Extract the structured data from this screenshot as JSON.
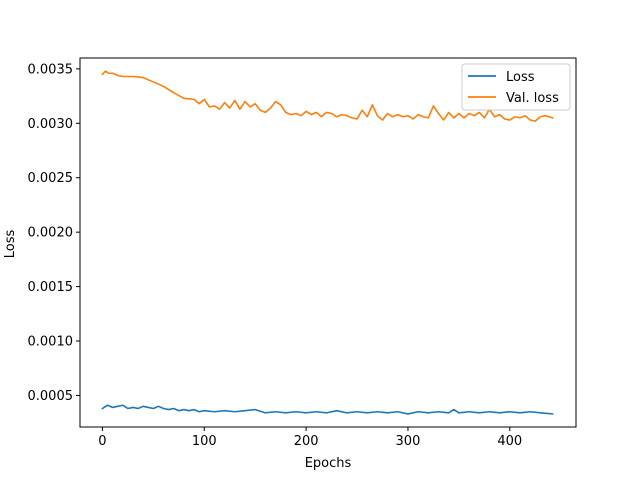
{
  "chart_data": {
    "type": "line",
    "title": "",
    "xlabel": "Epochs",
    "ylabel": "Loss",
    "xlim": [
      -22,
      465
    ],
    "ylim": [
      0.00021,
      0.0036
    ],
    "xticks": [
      0,
      100,
      200,
      300,
      400
    ],
    "xtick_labels": [
      "0",
      "100",
      "200",
      "300",
      "400"
    ],
    "yticks": [
      0.0005,
      0.001,
      0.0015,
      0.002,
      0.0025,
      0.003,
      0.0035
    ],
    "ytick_labels": [
      "0.0005",
      "0.0010",
      "0.0015",
      "0.0020",
      "0.0025",
      "0.0030",
      "0.0035"
    ],
    "grid": false,
    "legend_position": "top-right",
    "series": [
      {
        "name": "Loss",
        "color": "#1f77b4",
        "x": [
          0,
          5,
          10,
          15,
          20,
          25,
          30,
          35,
          40,
          45,
          50,
          55,
          60,
          65,
          70,
          75,
          80,
          85,
          90,
          95,
          100,
          110,
          120,
          130,
          140,
          150,
          160,
          170,
          180,
          190,
          200,
          210,
          220,
          230,
          240,
          250,
          260,
          270,
          280,
          290,
          300,
          310,
          320,
          330,
          340,
          345,
          350,
          360,
          370,
          380,
          390,
          400,
          410,
          420,
          430,
          442
        ],
        "y": [
          0.00038,
          0.00041,
          0.00039,
          0.0004,
          0.00041,
          0.00038,
          0.00039,
          0.00038,
          0.0004,
          0.00039,
          0.00038,
          0.0004,
          0.00038,
          0.00037,
          0.00038,
          0.00036,
          0.00037,
          0.00036,
          0.00037,
          0.00035,
          0.00036,
          0.00035,
          0.00036,
          0.00035,
          0.00036,
          0.00037,
          0.00034,
          0.00035,
          0.00034,
          0.00035,
          0.00034,
          0.00035,
          0.00034,
          0.00036,
          0.00034,
          0.00035,
          0.00034,
          0.00035,
          0.00034,
          0.00035,
          0.00033,
          0.00035,
          0.00034,
          0.00035,
          0.00034,
          0.00037,
          0.00034,
          0.00035,
          0.00034,
          0.00035,
          0.00034,
          0.00035,
          0.00034,
          0.00035,
          0.00034,
          0.00033
        ]
      },
      {
        "name": "Val. loss",
        "color": "#ff7f0e",
        "x": [
          0,
          3,
          6,
          10,
          15,
          20,
          30,
          40,
          50,
          60,
          70,
          80,
          90,
          95,
          100,
          105,
          110,
          115,
          120,
          125,
          130,
          135,
          140,
          145,
          150,
          155,
          160,
          165,
          170,
          175,
          180,
          185,
          190,
          195,
          200,
          205,
          210,
          215,
          220,
          225,
          230,
          235,
          240,
          245,
          250,
          255,
          260,
          265,
          270,
          275,
          280,
          285,
          290,
          295,
          300,
          305,
          310,
          315,
          320,
          325,
          330,
          335,
          340,
          345,
          350,
          355,
          360,
          365,
          370,
          375,
          380,
          385,
          390,
          395,
          400,
          405,
          410,
          415,
          420,
          425,
          430,
          435,
          442
        ],
        "y": [
          0.00345,
          0.00348,
          0.00346,
          0.00346,
          0.00344,
          0.00343,
          0.00343,
          0.00342,
          0.00338,
          0.00334,
          0.00328,
          0.00323,
          0.00322,
          0.00318,
          0.00322,
          0.00315,
          0.00316,
          0.00313,
          0.00319,
          0.00314,
          0.00321,
          0.00313,
          0.0032,
          0.00315,
          0.00318,
          0.00312,
          0.0031,
          0.00314,
          0.0032,
          0.00317,
          0.0031,
          0.00308,
          0.00309,
          0.00307,
          0.00311,
          0.00308,
          0.0031,
          0.00306,
          0.0031,
          0.00309,
          0.00306,
          0.00308,
          0.00307,
          0.00305,
          0.00304,
          0.00312,
          0.00306,
          0.00317,
          0.00307,
          0.00303,
          0.00309,
          0.00306,
          0.00308,
          0.00306,
          0.00307,
          0.00304,
          0.00308,
          0.00306,
          0.00305,
          0.00316,
          0.00309,
          0.00303,
          0.0031,
          0.00305,
          0.00309,
          0.00305,
          0.00309,
          0.00307,
          0.0031,
          0.00305,
          0.00313,
          0.00306,
          0.00308,
          0.00304,
          0.00303,
          0.00306,
          0.00305,
          0.00307,
          0.00303,
          0.00302,
          0.00306,
          0.00307,
          0.00305
        ]
      }
    ]
  }
}
